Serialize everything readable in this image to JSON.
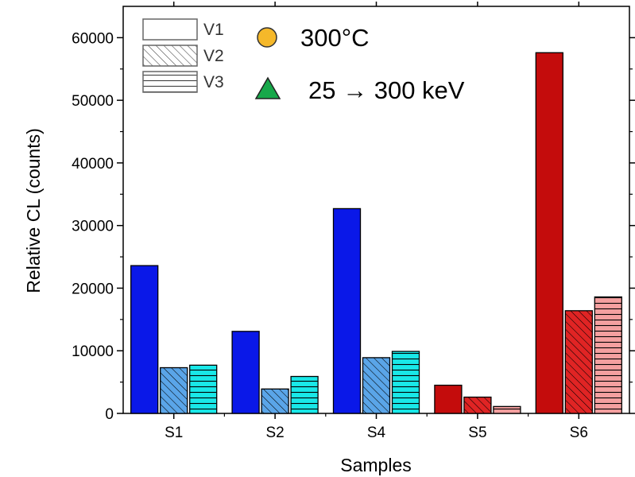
{
  "chart_data": {
    "type": "bar",
    "title": "",
    "xlabel": "Samples",
    "ylabel": "Relative CL (counts)",
    "ylim": [
      0,
      65000
    ],
    "yticks": [
      0,
      10000,
      20000,
      30000,
      40000,
      50000,
      60000
    ],
    "categories": [
      "S1",
      "S2",
      "S4",
      "S5",
      "S6"
    ],
    "series": [
      {
        "name": "V1",
        "values": [
          23600,
          13100,
          32700,
          4500,
          57600
        ]
      },
      {
        "name": "V2",
        "values": [
          7300,
          3900,
          8900,
          2600,
          16400
        ]
      },
      {
        "name": "V3",
        "values": [
          7700,
          5900,
          9900,
          1100,
          18600
        ]
      }
    ],
    "bar_colors": [
      [
        "#0a18e8",
        "#5aa5e8",
        "#19e8e8"
      ],
      [
        "#0a18e8",
        "#5aa5e8",
        "#19e8e8"
      ],
      [
        "#0a18e8",
        "#5aa5e8",
        "#19e8e8"
      ],
      [
        "#c40c0c",
        "#e02424",
        "#f4a0a0"
      ],
      [
        "#c40c0c",
        "#e02424",
        "#f4a0a0"
      ]
    ],
    "series_fill_patterns": [
      "solid",
      "diagonal-hatch",
      "horizontal-lines"
    ],
    "legend_position": "top-left",
    "annotations": [
      {
        "marker": "circle",
        "color": "#f5b82a",
        "text": "300°C"
      },
      {
        "marker": "triangle",
        "color": "#17a84a",
        "text": "25 → 300 keV"
      }
    ],
    "grid": false
  }
}
